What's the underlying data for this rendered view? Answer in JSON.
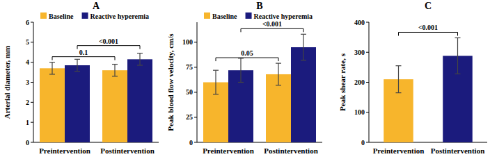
{
  "chart_data": [
    {
      "type": "bar",
      "panel": "A",
      "y_label": "Arterial diameter, mm",
      "categories": [
        "Preintervention",
        "Postintervention"
      ],
      "series": [
        {
          "name": "Baseline",
          "color": "#f7b52c",
          "values": [
            3.7,
            3.6
          ],
          "errors": [
            0.3,
            0.3
          ]
        },
        {
          "name": "Reactive hyperemia",
          "color": "#1b1b7d",
          "values": [
            3.85,
            4.15
          ],
          "errors": [
            0.3,
            0.3
          ]
        }
      ],
      "ylim": [
        0,
        6
      ],
      "yticks": [
        0,
        1,
        2,
        3,
        4,
        5,
        6
      ],
      "legend": "top",
      "annotations": [
        {
          "text": "0.1",
          "series": 0
        },
        {
          "text": "<0.001",
          "series": 1
        }
      ]
    },
    {
      "type": "bar",
      "panel": "B",
      "y_label": "Peak blood flow velocity, cm/s",
      "categories": [
        "Preintervention",
        "Postintervention"
      ],
      "series": [
        {
          "name": "Baseline",
          "color": "#f7b52c",
          "values": [
            60,
            68
          ],
          "errors": [
            12,
            11
          ]
        },
        {
          "name": "Reactive hyperemia",
          "color": "#1b1b7d",
          "values": [
            72,
            95
          ],
          "errors": [
            12,
            13
          ]
        }
      ],
      "ylim": [
        0,
        120
      ],
      "yticks": [
        0,
        25,
        50,
        75,
        100
      ],
      "legend": "top",
      "annotations": [
        {
          "text": "0.05",
          "series": 0
        },
        {
          "text": "<0.001",
          "series": 1
        }
      ]
    },
    {
      "type": "bar",
      "panel": "C",
      "y_label": "Peak shear rate, s",
      "categories": [
        "Preintervention",
        "Postintervention"
      ],
      "values": [
        210,
        288
      ],
      "errors": [
        45,
        60
      ],
      "colors": [
        "#f7b52c",
        "#1b1b7d"
      ],
      "ylim": [
        0,
        400
      ],
      "yticks": [
        0,
        100,
        200,
        300,
        400
      ],
      "annotations": [
        {
          "text": "<0.001"
        }
      ]
    }
  ]
}
